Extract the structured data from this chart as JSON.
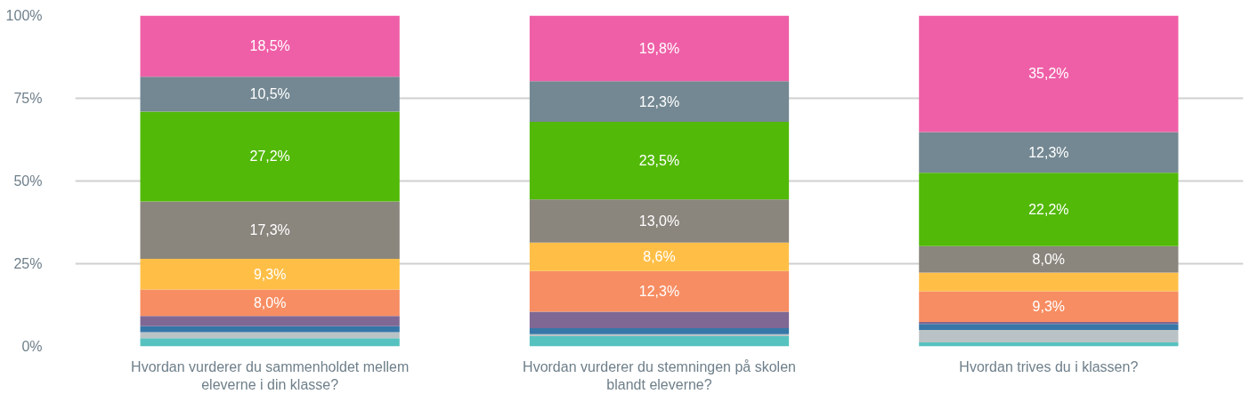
{
  "chart_data": {
    "type": "bar",
    "stacked": true,
    "categories": [
      "Hvordan vurderer du sammenholdet mellem eleverne i din klasse?",
      "Hvordan vurderer du stemningen på skolen blandt eleverne?",
      "Hvordan trives du i klassen?"
    ],
    "ylim": [
      0,
      100
    ],
    "yticks": [
      {
        "value": 0,
        "label": "0%"
      },
      {
        "value": 25,
        "label": "25%"
      },
      {
        "value": 50,
        "label": "50%"
      },
      {
        "value": 75,
        "label": "75%"
      },
      {
        "value": 100,
        "label": "100%"
      }
    ],
    "grid": "y",
    "series": [
      {
        "color": "#56c2c0",
        "values": [
          2.5,
          3.1,
          1.2
        ],
        "value_labels": [
          null,
          null,
          null
        ]
      },
      {
        "color": "#b9c3c5",
        "values": [
          1.8,
          0.6,
          3.8
        ],
        "value_labels": [
          null,
          null,
          null
        ]
      },
      {
        "color": "#3677a8",
        "values": [
          1.8,
          1.8,
          1.8
        ],
        "value_labels": [
          null,
          null,
          null
        ]
      },
      {
        "color": "#7f6894",
        "values": [
          3.1,
          5.0,
          0.6
        ],
        "value_labels": [
          null,
          null,
          null
        ]
      },
      {
        "color": "#f78d62",
        "values": [
          8.0,
          12.3,
          9.3
        ],
        "value_labels": [
          "8,0%",
          "12,3%",
          "9,3%"
        ]
      },
      {
        "color": "#ffbf47",
        "values": [
          9.3,
          8.6,
          5.6
        ],
        "value_labels": [
          "9,3%",
          "8,6%",
          null
        ]
      },
      {
        "color": "#8a857d",
        "values": [
          17.3,
          13.0,
          8.0
        ],
        "value_labels": [
          "17,3%",
          "13,0%",
          "8,0%"
        ]
      },
      {
        "color": "#52b908",
        "values": [
          27.2,
          23.5,
          22.2
        ],
        "value_labels": [
          "27,2%",
          "23,5%",
          "22,2%"
        ]
      },
      {
        "color": "#738892",
        "values": [
          10.5,
          12.3,
          12.3
        ],
        "value_labels": [
          "10,5%",
          "12,3%",
          "12,3%"
        ]
      },
      {
        "color": "#ef5fa7",
        "values": [
          18.5,
          19.8,
          35.2
        ],
        "value_labels": [
          "18,5%",
          "19,8%",
          "35,2%"
        ]
      }
    ]
  }
}
